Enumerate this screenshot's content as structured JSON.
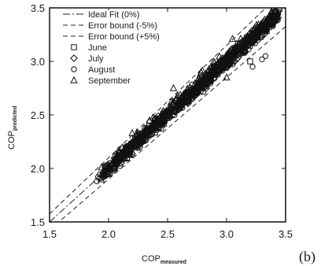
{
  "chart_data": {
    "type": "scatter",
    "title": "",
    "panel_label": "(b)",
    "xlabel": {
      "main": "COP",
      "sub": "measured"
    },
    "ylabel": {
      "main": "COP",
      "sub": "predicted"
    },
    "xlim": [
      1.5,
      3.5
    ],
    "ylim": [
      1.5,
      3.5
    ],
    "x_ticks": [
      "1.5",
      "2.0",
      "2.5",
      "3.0",
      "3.5"
    ],
    "y_ticks": [
      "1.5",
      "2.0",
      "2.5",
      "3.0",
      "3.5"
    ],
    "grid": false,
    "legend_position": "top-left",
    "lines": [
      {
        "name": "Ideal Fit (0%)",
        "slope": 1.0,
        "style": "dash-dot"
      },
      {
        "name": "Error bound (-5%)",
        "slope": 0.95,
        "style": "dashed"
      },
      {
        "name": "Error bound (+5%)",
        "slope": 1.05,
        "style": "dashed"
      }
    ],
    "series": [
      {
        "name": "June",
        "marker": "square",
        "x_range": [
          1.95,
          3.45
        ],
        "bias": 0.0,
        "spread": 0.025
      },
      {
        "name": "July",
        "marker": "diamond",
        "x_range": [
          1.92,
          3.45
        ],
        "bias": 0.0,
        "spread": 0.03
      },
      {
        "name": "August",
        "marker": "circle",
        "x_range": [
          1.9,
          3.45
        ],
        "bias": -0.01,
        "spread": 0.035
      },
      {
        "name": "September",
        "marker": "triangle",
        "x_range": [
          1.93,
          3.42
        ],
        "bias": 0.02,
        "spread": 0.035
      }
    ]
  }
}
